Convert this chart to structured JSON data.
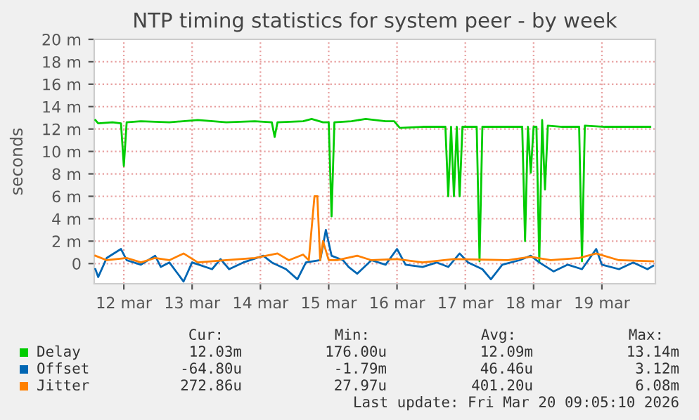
{
  "chart_data": {
    "type": "line",
    "title": "NTP timing statistics for system peer - by week",
    "ylabel": "seconds",
    "xlim": [
      "2026-03-12T01:36",
      "2026-03-20T06:48"
    ],
    "xticks": [
      {
        "value": "2026-03-12T12:00",
        "label": "12 mar"
      },
      {
        "value": "2026-03-13T12:00",
        "label": "13 mar"
      },
      {
        "value": "2026-03-14T12:00",
        "label": "14 mar"
      },
      {
        "value": "2026-03-15T12:00",
        "label": "15 mar"
      },
      {
        "value": "2026-03-16T12:00",
        "label": "16 mar"
      },
      {
        "value": "2026-03-17T12:00",
        "label": "17 mar"
      },
      {
        "value": "2026-03-18T12:00",
        "label": "18 mar"
      },
      {
        "value": "2026-03-19T12:00",
        "label": "19 mar"
      }
    ],
    "ylim": [
      -1.8,
      20
    ],
    "yticks": [
      0,
      {
        "value": 2,
        "label": "2 m"
      },
      {
        "value": 4,
        "label": "4 m"
      },
      {
        "value": 6,
        "label": "6 m"
      },
      {
        "value": 8,
        "label": "8 m"
      },
      {
        "value": 10,
        "label": "10 m"
      },
      {
        "value": 12,
        "label": "12 m"
      },
      {
        "value": 14,
        "label": "14 m"
      },
      {
        "value": 16,
        "label": "16 m"
      },
      {
        "value": 18,
        "label": "18 m"
      },
      {
        "value": 20,
        "label": "20 m"
      }
    ],
    "grid": true,
    "legend": "bottom",
    "series": [
      {
        "name": "Delay",
        "color": "#00cc00",
        "x": [
          "2026-03-12T02:00",
          "2026-03-12T03:00",
          "2026-03-12T08:00",
          "2026-03-12T11:00",
          "2026-03-12T12:00",
          "2026-03-12T13:00",
          "2026-03-12T18:00",
          "2026-03-13T04:00",
          "2026-03-13T14:00",
          "2026-03-14T00:00",
          "2026-03-14T10:00",
          "2026-03-14T16:00",
          "2026-03-14T17:00",
          "2026-03-14T18:00",
          "2026-03-15T03:00",
          "2026-03-15T06:00",
          "2026-03-15T10:00",
          "2026-03-15T12:00",
          "2026-03-15T13:00",
          "2026-03-15T14:00",
          "2026-03-15T20:00",
          "2026-03-16T01:00",
          "2026-03-16T08:00",
          "2026-03-16T11:00",
          "2026-03-16T13:00",
          "2026-03-16T21:00",
          "2026-03-17T05:00",
          "2026-03-17T06:00",
          "2026-03-17T07:00",
          "2026-03-17T08:00",
          "2026-03-17T09:00",
          "2026-03-17T10:00",
          "2026-03-17T11:00",
          "2026-03-17T16:00",
          "2026-03-17T17:00",
          "2026-03-17T18:00",
          "2026-03-18T03:00",
          "2026-03-18T08:00",
          "2026-03-18T09:00",
          "2026-03-18T10:00",
          "2026-03-18T11:00",
          "2026-03-18T12:00",
          "2026-03-18T13:00",
          "2026-03-18T14:00",
          "2026-03-18T15:00",
          "2026-03-18T16:00",
          "2026-03-18T17:00",
          "2026-03-18T22:00",
          "2026-03-19T04:00",
          "2026-03-19T05:00",
          "2026-03-19T06:00",
          "2026-03-19T13:00",
          "2026-03-19T23:00",
          "2026-03-20T05:00"
        ],
        "values": [
          12.8,
          12.5,
          12.6,
          12.5,
          8.7,
          12.6,
          12.7,
          12.6,
          12.8,
          12.6,
          12.7,
          12.6,
          11.3,
          12.6,
          12.7,
          12.9,
          12.6,
          12.6,
          4.2,
          12.6,
          12.7,
          12.9,
          12.7,
          12.7,
          12.1,
          12.2,
          12.2,
          6.0,
          12.2,
          6.0,
          12.2,
          6.0,
          12.2,
          12.2,
          0.2,
          12.2,
          12.2,
          12.2,
          2.0,
          12.2,
          8.1,
          12.2,
          12.2,
          0.1,
          12.8,
          6.6,
          12.3,
          12.2,
          12.2,
          0.2,
          12.3,
          12.2,
          12.2,
          12.2
        ]
      },
      {
        "name": "Offset",
        "color": "#0066b3",
        "x": [
          "2026-03-12T02:00",
          "2026-03-12T03:00",
          "2026-03-12T06:00",
          "2026-03-12T11:00",
          "2026-03-12T13:00",
          "2026-03-12T18:00",
          "2026-03-12T23:00",
          "2026-03-13T01:00",
          "2026-03-13T04:00",
          "2026-03-13T09:00",
          "2026-03-13T12:00",
          "2026-03-13T19:00",
          "2026-03-13T22:00",
          "2026-03-14T01:00",
          "2026-03-14T06:00",
          "2026-03-14T13:00",
          "2026-03-14T16:00",
          "2026-03-14T21:00",
          "2026-03-15T01:00",
          "2026-03-15T04:00",
          "2026-03-15T09:00",
          "2026-03-15T11:00",
          "2026-03-15T13:00",
          "2026-03-15T17:00",
          "2026-03-15T19:00",
          "2026-03-15T22:00",
          "2026-03-16T03:00",
          "2026-03-16T08:00",
          "2026-03-16T12:00",
          "2026-03-16T15:00",
          "2026-03-16T21:00",
          "2026-03-17T02:00",
          "2026-03-17T06:00",
          "2026-03-17T10:00",
          "2026-03-17T13:00",
          "2026-03-17T18:00",
          "2026-03-17T21:00",
          "2026-03-18T01:00",
          "2026-03-18T07:00",
          "2026-03-18T11:00",
          "2026-03-18T14:00",
          "2026-03-18T19:00",
          "2026-03-19T00:00",
          "2026-03-19T05:00",
          "2026-03-19T10:00",
          "2026-03-19T12:00",
          "2026-03-19T18:00",
          "2026-03-19T23:00",
          "2026-03-20T04:00",
          "2026-03-20T06:00"
        ],
        "values": [
          -0.5,
          -1.2,
          0.5,
          1.3,
          0.3,
          -0.1,
          0.7,
          -0.3,
          0.1,
          -1.6,
          0.1,
          -0.5,
          0.4,
          -0.5,
          0.1,
          0.7,
          0.1,
          -0.5,
          -1.4,
          0.1,
          0.3,
          3.0,
          0.7,
          0.3,
          -0.3,
          -0.9,
          0.3,
          -0.1,
          1.3,
          -0.1,
          -0.3,
          0.1,
          -0.3,
          0.9,
          0.1,
          -0.5,
          -1.4,
          -0.1,
          0.3,
          0.7,
          0.1,
          -0.7,
          -0.1,
          -0.5,
          1.3,
          -0.1,
          -0.5,
          0.1,
          -0.5,
          -0.2
        ]
      },
      {
        "name": "Jitter",
        "color": "#ff8000",
        "x": [
          "2026-03-12T02:00",
          "2026-03-12T06:00",
          "2026-03-12T13:00",
          "2026-03-12T18:00",
          "2026-03-12T23:00",
          "2026-03-13T04:00",
          "2026-03-13T09:00",
          "2026-03-13T14:00",
          "2026-03-14T00:00",
          "2026-03-14T10:00",
          "2026-03-14T18:00",
          "2026-03-14T22:00",
          "2026-03-15T03:00",
          "2026-03-15T05:00",
          "2026-03-15T07:00",
          "2026-03-15T08:00",
          "2026-03-15T09:00",
          "2026-03-15T10:00",
          "2026-03-15T12:00",
          "2026-03-15T15:00",
          "2026-03-15T22:00",
          "2026-03-16T03:00",
          "2026-03-16T12:00",
          "2026-03-16T21:00",
          "2026-03-17T08:00",
          "2026-03-18T03:00",
          "2026-03-18T11:00",
          "2026-03-18T18:00",
          "2026-03-19T04:00",
          "2026-03-19T10:00",
          "2026-03-19T18:00",
          "2026-03-20T06:00"
        ],
        "values": [
          0.7,
          0.3,
          0.5,
          0.1,
          0.5,
          0.3,
          0.9,
          0.1,
          0.3,
          0.5,
          0.9,
          0.3,
          0.8,
          0.3,
          6.0,
          6.0,
          0.3,
          2.0,
          0.3,
          0.3,
          0.7,
          0.3,
          0.4,
          0.1,
          0.4,
          0.3,
          0.6,
          0.3,
          0.5,
          0.9,
          0.3,
          0.2
        ]
      }
    ],
    "annotations": [
      "Cur:",
      "Min:",
      "Avg:",
      "Max:",
      "12.03m",
      "176.00u",
      "12.09m",
      "13.14m",
      "-64.80u",
      "-1.79m",
      "46.46u",
      "3.12m",
      "272.86u",
      "27.97u",
      "401.20u",
      "6.08m",
      "Last update: Fri Mar 20 09:05:10 2026"
    ]
  }
}
